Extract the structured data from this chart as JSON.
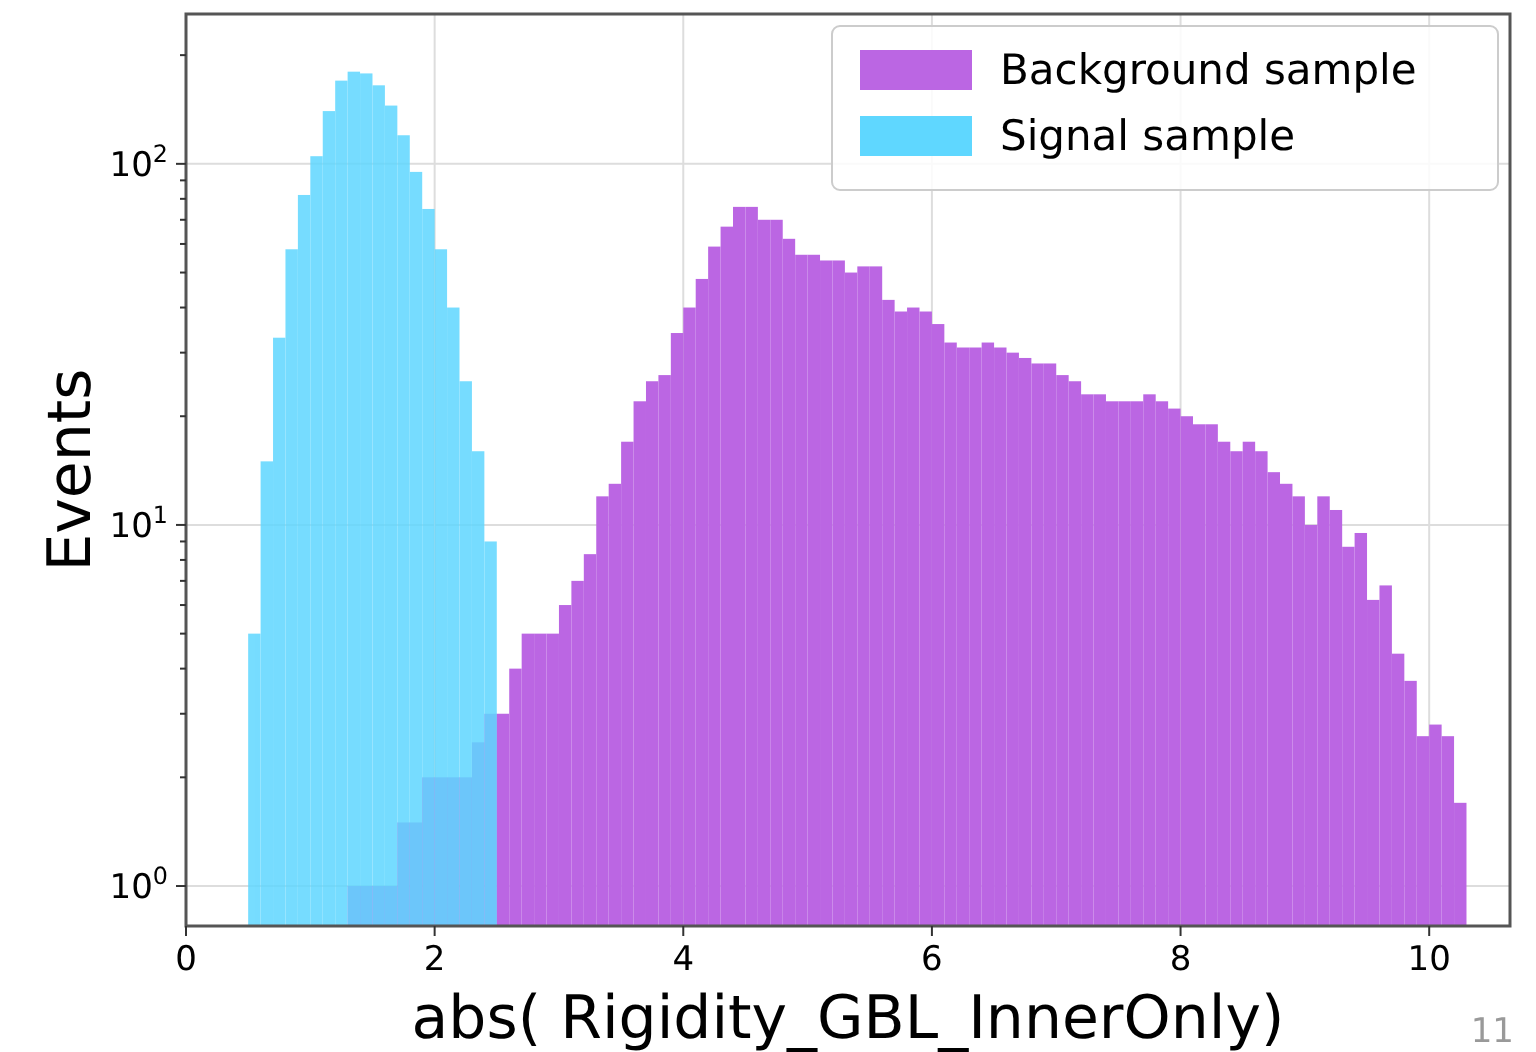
{
  "chart_data": {
    "type": "histogram",
    "xlabel": "abs( Rigidity_GBL_InnerOnly)",
    "ylabel": "Events",
    "bins": [
      0.5,
      0.6,
      0.7,
      0.8,
      0.9,
      1.0,
      1.1,
      1.2,
      1.3,
      1.4,
      1.5,
      1.6,
      1.7,
      1.8,
      1.9,
      2.0,
      2.1,
      2.2,
      2.3,
      2.4,
      2.5,
      2.6,
      2.7,
      2.8,
      2.9,
      3.0,
      3.1,
      3.2,
      3.3,
      3.4,
      3.5,
      3.6,
      3.7,
      3.8,
      3.9,
      4.0,
      4.1,
      4.2,
      4.3,
      4.4,
      4.5,
      4.6,
      4.7,
      4.8,
      4.9,
      5.0,
      5.1,
      5.2,
      5.3,
      5.4,
      5.5,
      5.6,
      5.7,
      5.8,
      5.9,
      6.0,
      6.1,
      6.2,
      6.3,
      6.4,
      6.5,
      6.6,
      6.7,
      6.8,
      6.9,
      7.0,
      7.1,
      7.2,
      7.3,
      7.4,
      7.5,
      7.6,
      7.7,
      7.8,
      7.9,
      8.0,
      8.1,
      8.2,
      8.3,
      8.4,
      8.5,
      8.6,
      8.7,
      8.8,
      8.9,
      9.0,
      9.1,
      9.2,
      9.3,
      9.4,
      9.5,
      9.6,
      9.7,
      9.8,
      9.9,
      10.0,
      10.1,
      10.2,
      10.3
    ],
    "series": [
      {
        "name": "Background sample",
        "color": "#bb66e3",
        "values": [
          null,
          null,
          null,
          null,
          null,
          null,
          null,
          null,
          1,
          1,
          1,
          1,
          1.5,
          1.5,
          2,
          2,
          2,
          2,
          2.5,
          3,
          3,
          4,
          5,
          5,
          5,
          6,
          7,
          8.3,
          12,
          13,
          17,
          22,
          25,
          26,
          34,
          40,
          48,
          59,
          67,
          76,
          76,
          70,
          70,
          62,
          56,
          56,
          54,
          54,
          50,
          52,
          52,
          42,
          39,
          40,
          39,
          36,
          32,
          31,
          31,
          32,
          31,
          30,
          29,
          28,
          28,
          26,
          25,
          23,
          23,
          22,
          22,
          22,
          23,
          22,
          21,
          20,
          19,
          19,
          17,
          16,
          17,
          16,
          14,
          13,
          12,
          10,
          12,
          11,
          8.7,
          9.5,
          6.2,
          6.8,
          4.4,
          3.7,
          2.6,
          2.8,
          2.6,
          1.7
        ]
      },
      {
        "name": "Signal sample",
        "color": "#5fd7ff",
        "values": [
          5,
          15,
          33,
          58,
          82,
          105,
          140,
          170,
          180,
          178,
          165,
          145,
          120,
          95,
          75,
          58,
          40,
          25,
          16,
          9,
          null,
          null,
          null,
          null,
          null,
          null,
          null,
          null,
          null,
          null,
          null,
          null,
          null,
          null,
          null,
          null,
          null,
          null,
          null,
          null,
          null,
          null,
          null,
          null,
          null,
          null,
          null,
          null,
          null,
          null,
          null,
          null,
          null,
          null,
          null,
          null,
          null,
          null,
          null,
          null,
          null,
          null,
          null,
          null,
          null,
          null,
          null,
          null,
          null,
          null,
          null,
          null,
          null,
          null,
          null,
          null,
          null,
          null,
          null,
          null,
          null,
          null,
          null,
          null,
          null,
          null,
          null,
          null,
          null,
          null,
          null,
          null,
          null,
          null,
          null,
          null,
          null,
          null
        ]
      }
    ],
    "xlim": [
      0,
      10.65
    ],
    "xticks": [
      0,
      2,
      4,
      6,
      8,
      10
    ],
    "log": true,
    "ylim": [
      0.775,
      260
    ],
    "yticks": [
      {
        "value": 1,
        "label": "10$^{0}$"
      },
      {
        "value": 2,
        "label": null
      },
      {
        "value": 3,
        "label": null
      },
      {
        "value": 4,
        "label": null
      },
      {
        "value": 5,
        "label": null
      },
      {
        "value": 6,
        "label": null
      },
      {
        "value": 7,
        "label": null
      },
      {
        "value": 8,
        "label": null
      },
      {
        "value": 9,
        "label": null
      },
      {
        "value": 10,
        "label": "10$^{1}$"
      },
      {
        "value": 20,
        "label": null
      },
      {
        "value": 30,
        "label": null
      },
      {
        "value": 40,
        "label": null
      },
      {
        "value": 50,
        "label": null
      },
      {
        "value": 60,
        "label": null
      },
      {
        "value": 70,
        "label": null
      },
      {
        "value": 80,
        "label": null
      },
      {
        "value": 90,
        "label": null
      },
      {
        "value": 100,
        "label": "10$^{2}$"
      },
      {
        "value": 200,
        "label": null
      }
    ],
    "grid": true,
    "legend": "top right",
    "annotations": [
      "11"
    ]
  }
}
